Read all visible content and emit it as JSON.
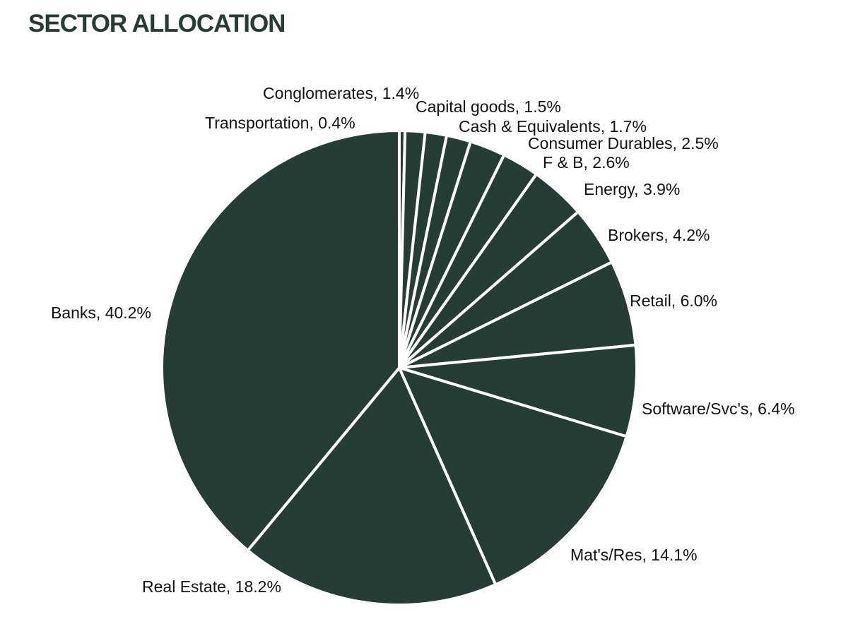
{
  "colors": {
    "slice_fill": "#253d36",
    "slice_stroke": "#ffffff",
    "title": "#253d36",
    "label": "#111111"
  },
  "chart_data": {
    "type": "pie",
    "title": "SECTOR ALLOCATION",
    "start": "top, clockwise",
    "slices": [
      {
        "name": "Transportation",
        "label": "Transportation, 0.4%",
        "value": 0.4
      },
      {
        "name": "Conglomerates",
        "label": "Conglomerates, 1.4%",
        "value": 1.4
      },
      {
        "name": "Capital goods",
        "label": "Capital goods, 1.5%",
        "value": 1.5
      },
      {
        "name": "Cash & Equivalents",
        "label": "Cash & Equivalents, 1.7%",
        "value": 1.7
      },
      {
        "name": "Consumer Durables",
        "label": "Consumer Durables, 2.5%",
        "value": 2.5
      },
      {
        "name": "F & B",
        "label": "F & B, 2.6%",
        "value": 2.6
      },
      {
        "name": "Energy",
        "label": "Energy, 3.9%",
        "value": 3.9
      },
      {
        "name": "Brokers",
        "label": "Brokers,  4.2%",
        "value": 4.2
      },
      {
        "name": "Retail",
        "label": "Retail, 6.0%",
        "value": 6.0
      },
      {
        "name": "Software/Svc's",
        "label": "Software/Svc's, 6.4%",
        "value": 6.4
      },
      {
        "name": "Mat's/Res",
        "label": "Mat's/Res, 14.1%",
        "value": 14.1
      },
      {
        "name": "Real Estate",
        "label": "Real Estate, 18.2%",
        "value": 18.2
      },
      {
        "name": "Banks",
        "label": "Banks, 40.2%",
        "value": 40.2
      }
    ]
  }
}
